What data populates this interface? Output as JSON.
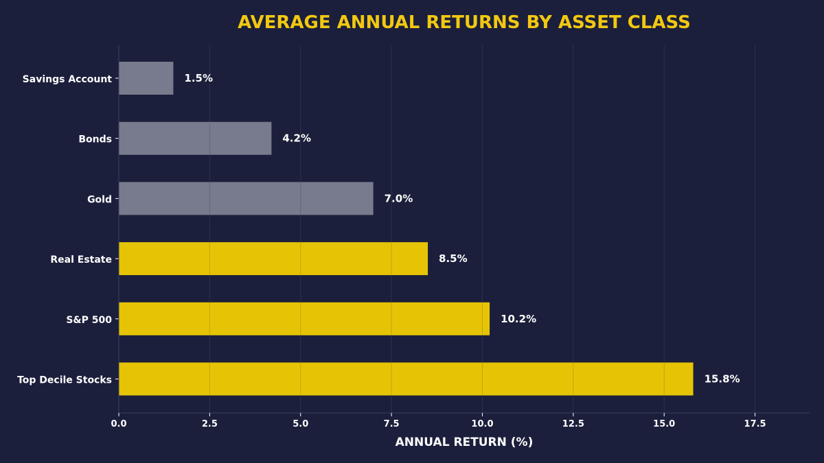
{
  "chart_data": {
    "type": "bar",
    "orientation": "horizontal",
    "title": "AVERAGE ANNUAL RETURNS BY ASSET CLASS",
    "xlabel": "ANNUAL RETURN (%)",
    "ylabel": "",
    "categories": [
      "Savings Account",
      "Bonds",
      "Gold",
      "Real Estate",
      "S&P 500",
      "Top Decile Stocks"
    ],
    "values": [
      1.5,
      4.2,
      7.0,
      8.5,
      10.2,
      15.8
    ],
    "value_labels": [
      "1.5%",
      "4.2%",
      "7.0%",
      "8.5%",
      "10.2%",
      "15.8%"
    ],
    "xlim": [
      0,
      19
    ],
    "xticks": [
      0.0,
      2.5,
      5.0,
      7.5,
      10.0,
      12.5,
      15.0,
      17.5
    ],
    "xtick_labels": [
      "0.0",
      "2.5",
      "5.0",
      "7.5",
      "10.0",
      "12.5",
      "15.0",
      "17.5"
    ],
    "grid": "vertical",
    "legend": "none",
    "colors": {
      "background": "#1b1f3b",
      "title": "#f2c811",
      "highlight_bar": "#e6c405",
      "muted_bar": "#777b8d",
      "text": "#ffffff",
      "grid": "#3a3f5c"
    },
    "highlighted": [
      false,
      false,
      false,
      true,
      true,
      true
    ]
  }
}
